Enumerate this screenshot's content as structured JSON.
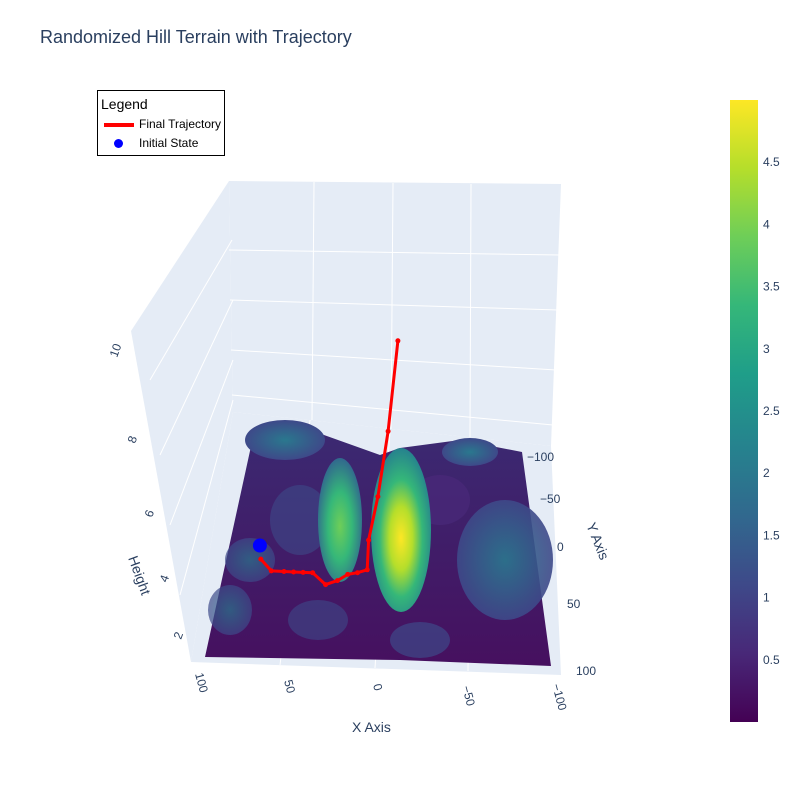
{
  "chart_data": {
    "type": "surface3d",
    "title": "Randomized Hill Terrain with Trajectory",
    "xlabel": "X Axis",
    "ylabel": "Y Axis",
    "zlabel": "Height",
    "x_ticks": [
      "100",
      "50",
      "0",
      "−50",
      "−100"
    ],
    "y_ticks": [
      "−100",
      "−50",
      "0",
      "50",
      "100"
    ],
    "z_ticks": [
      "2",
      "4",
      "6",
      "8",
      "10"
    ],
    "xlim": [
      -100,
      100
    ],
    "ylim": [
      -100,
      100
    ],
    "zlim": [
      0,
      10
    ],
    "colorscale": "Viridis",
    "colorbar": {
      "min": 0,
      "max": 5,
      "ticks": [
        "0.5",
        "1",
        "1.5",
        "2",
        "2.5",
        "3",
        "3.5",
        "4",
        "4.5"
      ],
      "colors": [
        "#440154",
        "#482878",
        "#3e4989",
        "#31688e",
        "#26828e",
        "#1f9e89",
        "#35b779",
        "#6ece58",
        "#b5de2b",
        "#fde725"
      ]
    },
    "legend": {
      "title": "Legend",
      "position": "top-left",
      "entries": [
        {
          "name": "Final Trajectory",
          "kind": "line",
          "color": "#ff0000"
        },
        {
          "name": "Initial State",
          "kind": "marker",
          "color": "#0000ff"
        }
      ]
    },
    "grid": true,
    "series": [
      {
        "name": "Final Trajectory",
        "color": "#ff0000",
        "points": [
          {
            "x": 78,
            "y": 20,
            "z": 0.4
          },
          {
            "x": 70,
            "y": 30,
            "z": 0.4
          },
          {
            "x": 62,
            "y": 30,
            "z": 0.4
          },
          {
            "x": 56,
            "y": 30,
            "z": 0.4
          },
          {
            "x": 50,
            "y": 30,
            "z": 0.4
          },
          {
            "x": 44,
            "y": 30,
            "z": 0.4
          },
          {
            "x": 35,
            "y": 40,
            "z": 0.4
          },
          {
            "x": 28,
            "y": 36,
            "z": 0.4
          },
          {
            "x": 22,
            "y": 30,
            "z": 0.4
          },
          {
            "x": 16,
            "y": 28,
            "z": 0.4
          },
          {
            "x": 10,
            "y": 25,
            "z": 0.4
          },
          {
            "x": 10,
            "y": 10,
            "z": 1.0
          },
          {
            "x": 5,
            "y": -10,
            "z": 2.0
          },
          {
            "x": 0,
            "y": -50,
            "z": 3.0
          },
          {
            "x": -5,
            "y": -95,
            "z": 4.9
          }
        ]
      },
      {
        "name": "Initial State",
        "color": "#0000ff",
        "points": [
          {
            "x": 80,
            "y": 10,
            "z": 0.5
          }
        ]
      }
    ]
  }
}
